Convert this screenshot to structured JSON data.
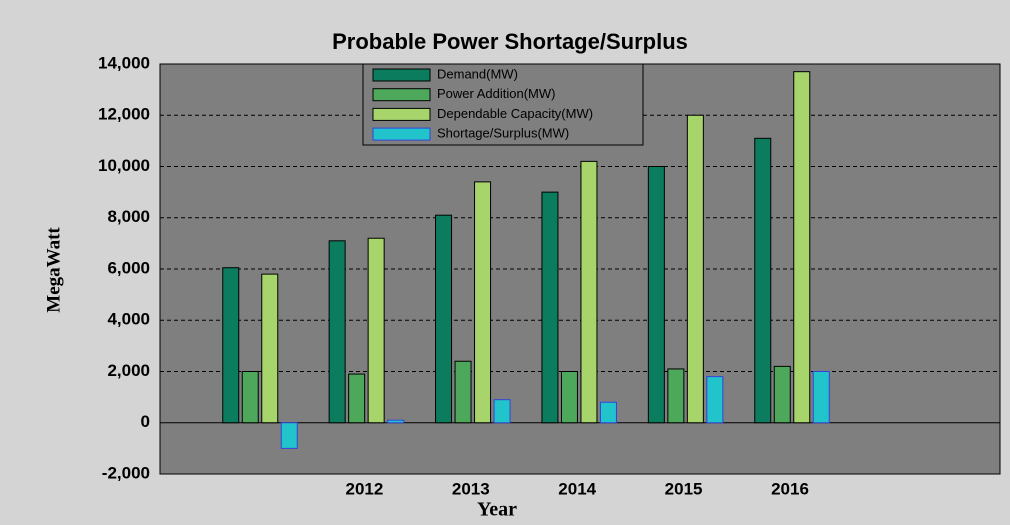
{
  "chart_data": {
    "type": "bar",
    "title": "Probable Power Shortage/Surplus",
    "x_label": "Year",
    "y_label": "MegaWatt",
    "categories": [
      null,
      "2012",
      "2013",
      "2014",
      "2015",
      "2016"
    ],
    "series": [
      {
        "name": "Demand(MW)",
        "color": "#0b7d5e",
        "values": [
          6050,
          7100,
          8100,
          9000,
          10000,
          11100
        ]
      },
      {
        "name": "Power Addition(MW)",
        "color": "#4ea85c",
        "values": [
          2000,
          1900,
          2400,
          2000,
          2100,
          2200
        ]
      },
      {
        "name": "Dependable Capacity(MW)",
        "color": "#a8d46c",
        "values": [
          5800,
          7200,
          9400,
          10200,
          12000,
          13700
        ]
      },
      {
        "name": "Shortage/Surplus(MW)",
        "color": "#22c4cc",
        "values": [
          -1000,
          100,
          900,
          800,
          1800,
          2000
        ]
      }
    ],
    "ylim": [
      -2000,
      14000
    ],
    "yticks": [
      {
        "value": -2000,
        "label": "-2,000"
      },
      0,
      {
        "value": 2000,
        "label": "2,000"
      },
      {
        "value": 4000,
        "label": "4,000"
      },
      {
        "value": 6000,
        "label": "6,000"
      },
      {
        "value": 8000,
        "label": "8,000"
      },
      {
        "value": 10000,
        "label": "10,000"
      },
      {
        "value": 12000,
        "label": "12,000"
      },
      {
        "value": 14000,
        "label": "14,000"
      }
    ],
    "grid": true,
    "legend": "top"
  }
}
